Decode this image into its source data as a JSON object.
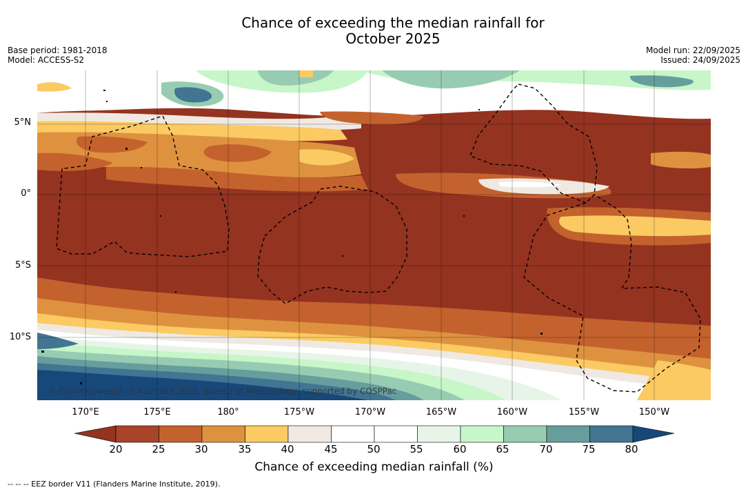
{
  "title": {
    "line1": "Chance of exceeding the median rainfall for",
    "line2": "October 2025"
  },
  "meta": {
    "base_period": "Base period: 1981-2018",
    "model": "Model: ACCESS-S2",
    "model_run": "Model run: 22/09/2025",
    "issued": "Issued: 24/09/2025"
  },
  "lat_labels": [
    "5°N",
    "0°",
    "5°S",
    "10°S"
  ],
  "lon_labels": [
    "170°E",
    "175°E",
    "180°",
    "175°W",
    "170°W",
    "165°W",
    "160°W",
    "155°W",
    "150°W"
  ],
  "copyright": "© Commonwealth of Australia 2025, Bureau of Meteorology, supported by COSPPac",
  "colorbar": {
    "title": "Chance of exceeding median rainfall (%)",
    "ticks": [
      "20",
      "25",
      "30",
      "35",
      "40",
      "45",
      "50",
      "55",
      "60",
      "65",
      "70",
      "75",
      "80"
    ],
    "colors": [
      "#a7442a",
      "#c4622e",
      "#de9240",
      "#fbca63",
      "#efe9e2",
      "#ffffff",
      "#ffffff",
      "#e6f5e7",
      "#c7f6c8",
      "#98ccb2",
      "#669e9d",
      "#427592"
    ],
    "under_color": "#943320",
    "over_color": "#17487a"
  },
  "footer": "--  --  -- EEZ border V11 (Flanders Marine Institute, 2019)."
}
